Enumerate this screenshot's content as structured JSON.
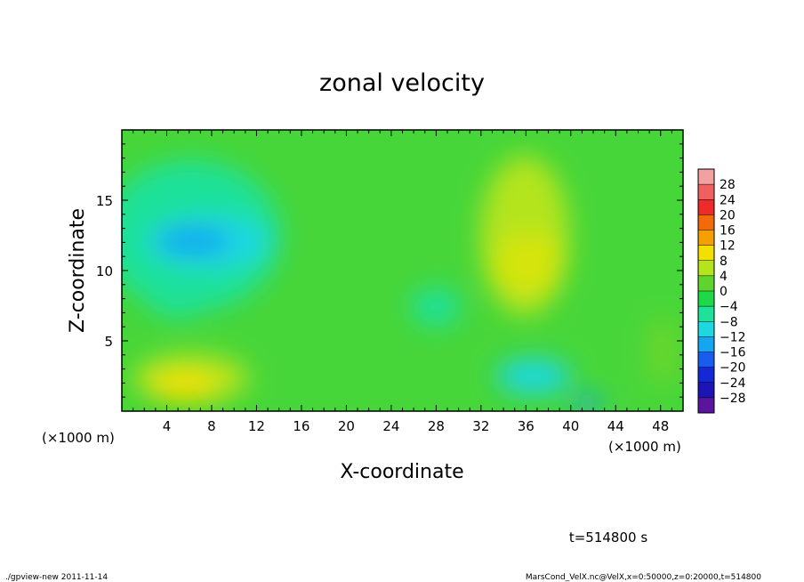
{
  "chart_data": {
    "type": "heatmap",
    "title": "zonal velocity",
    "xlabel": "X-coordinate",
    "ylabel": "Z-coordinate",
    "x_unit_label": "(×1000 m)",
    "y_unit_label": "(×1000 m)",
    "xlim": [
      0,
      50
    ],
    "ylim": [
      0,
      20
    ],
    "x_ticks": [
      "4",
      "8",
      "12",
      "16",
      "20",
      "24",
      "28",
      "32",
      "36",
      "40",
      "44",
      "48"
    ],
    "y_ticks": [
      "5",
      "10",
      "15"
    ],
    "colorbar_levels": [
      "28",
      "24",
      "20",
      "16",
      "12",
      "8",
      "4",
      "0",
      "−4",
      "−8",
      "−12",
      "−16",
      "−20",
      "−24",
      "−28"
    ],
    "colorbar_colors": [
      "#f2a0a0",
      "#f06060",
      "#ee2a2a",
      "#f26a0a",
      "#f6a000",
      "#f2e000",
      "#b4e41c",
      "#5fd42d",
      "#1fd84a",
      "#1ee19a",
      "#1ed8e0",
      "#14a6f0",
      "#1a5cf0",
      "#1428d8",
      "#1c14b4",
      "#5a14a0"
    ],
    "features": [
      {
        "x": 6.5,
        "z": 12,
        "value": -10
      },
      {
        "x": 36,
        "z": 10.5,
        "value": 8
      },
      {
        "x": 36,
        "z": 2.2,
        "value": -8
      },
      {
        "x": 7,
        "z": 1.5,
        "value": 9
      },
      {
        "x": 28,
        "z": 7.5,
        "value": -5
      }
    ],
    "time_label": "t=514800 s"
  },
  "footer": {
    "left": "./gpview-new  2011-11-14",
    "right": "MarsCond_VelX.nc@VelX,x=0:50000,z=0:20000,t=514800"
  }
}
